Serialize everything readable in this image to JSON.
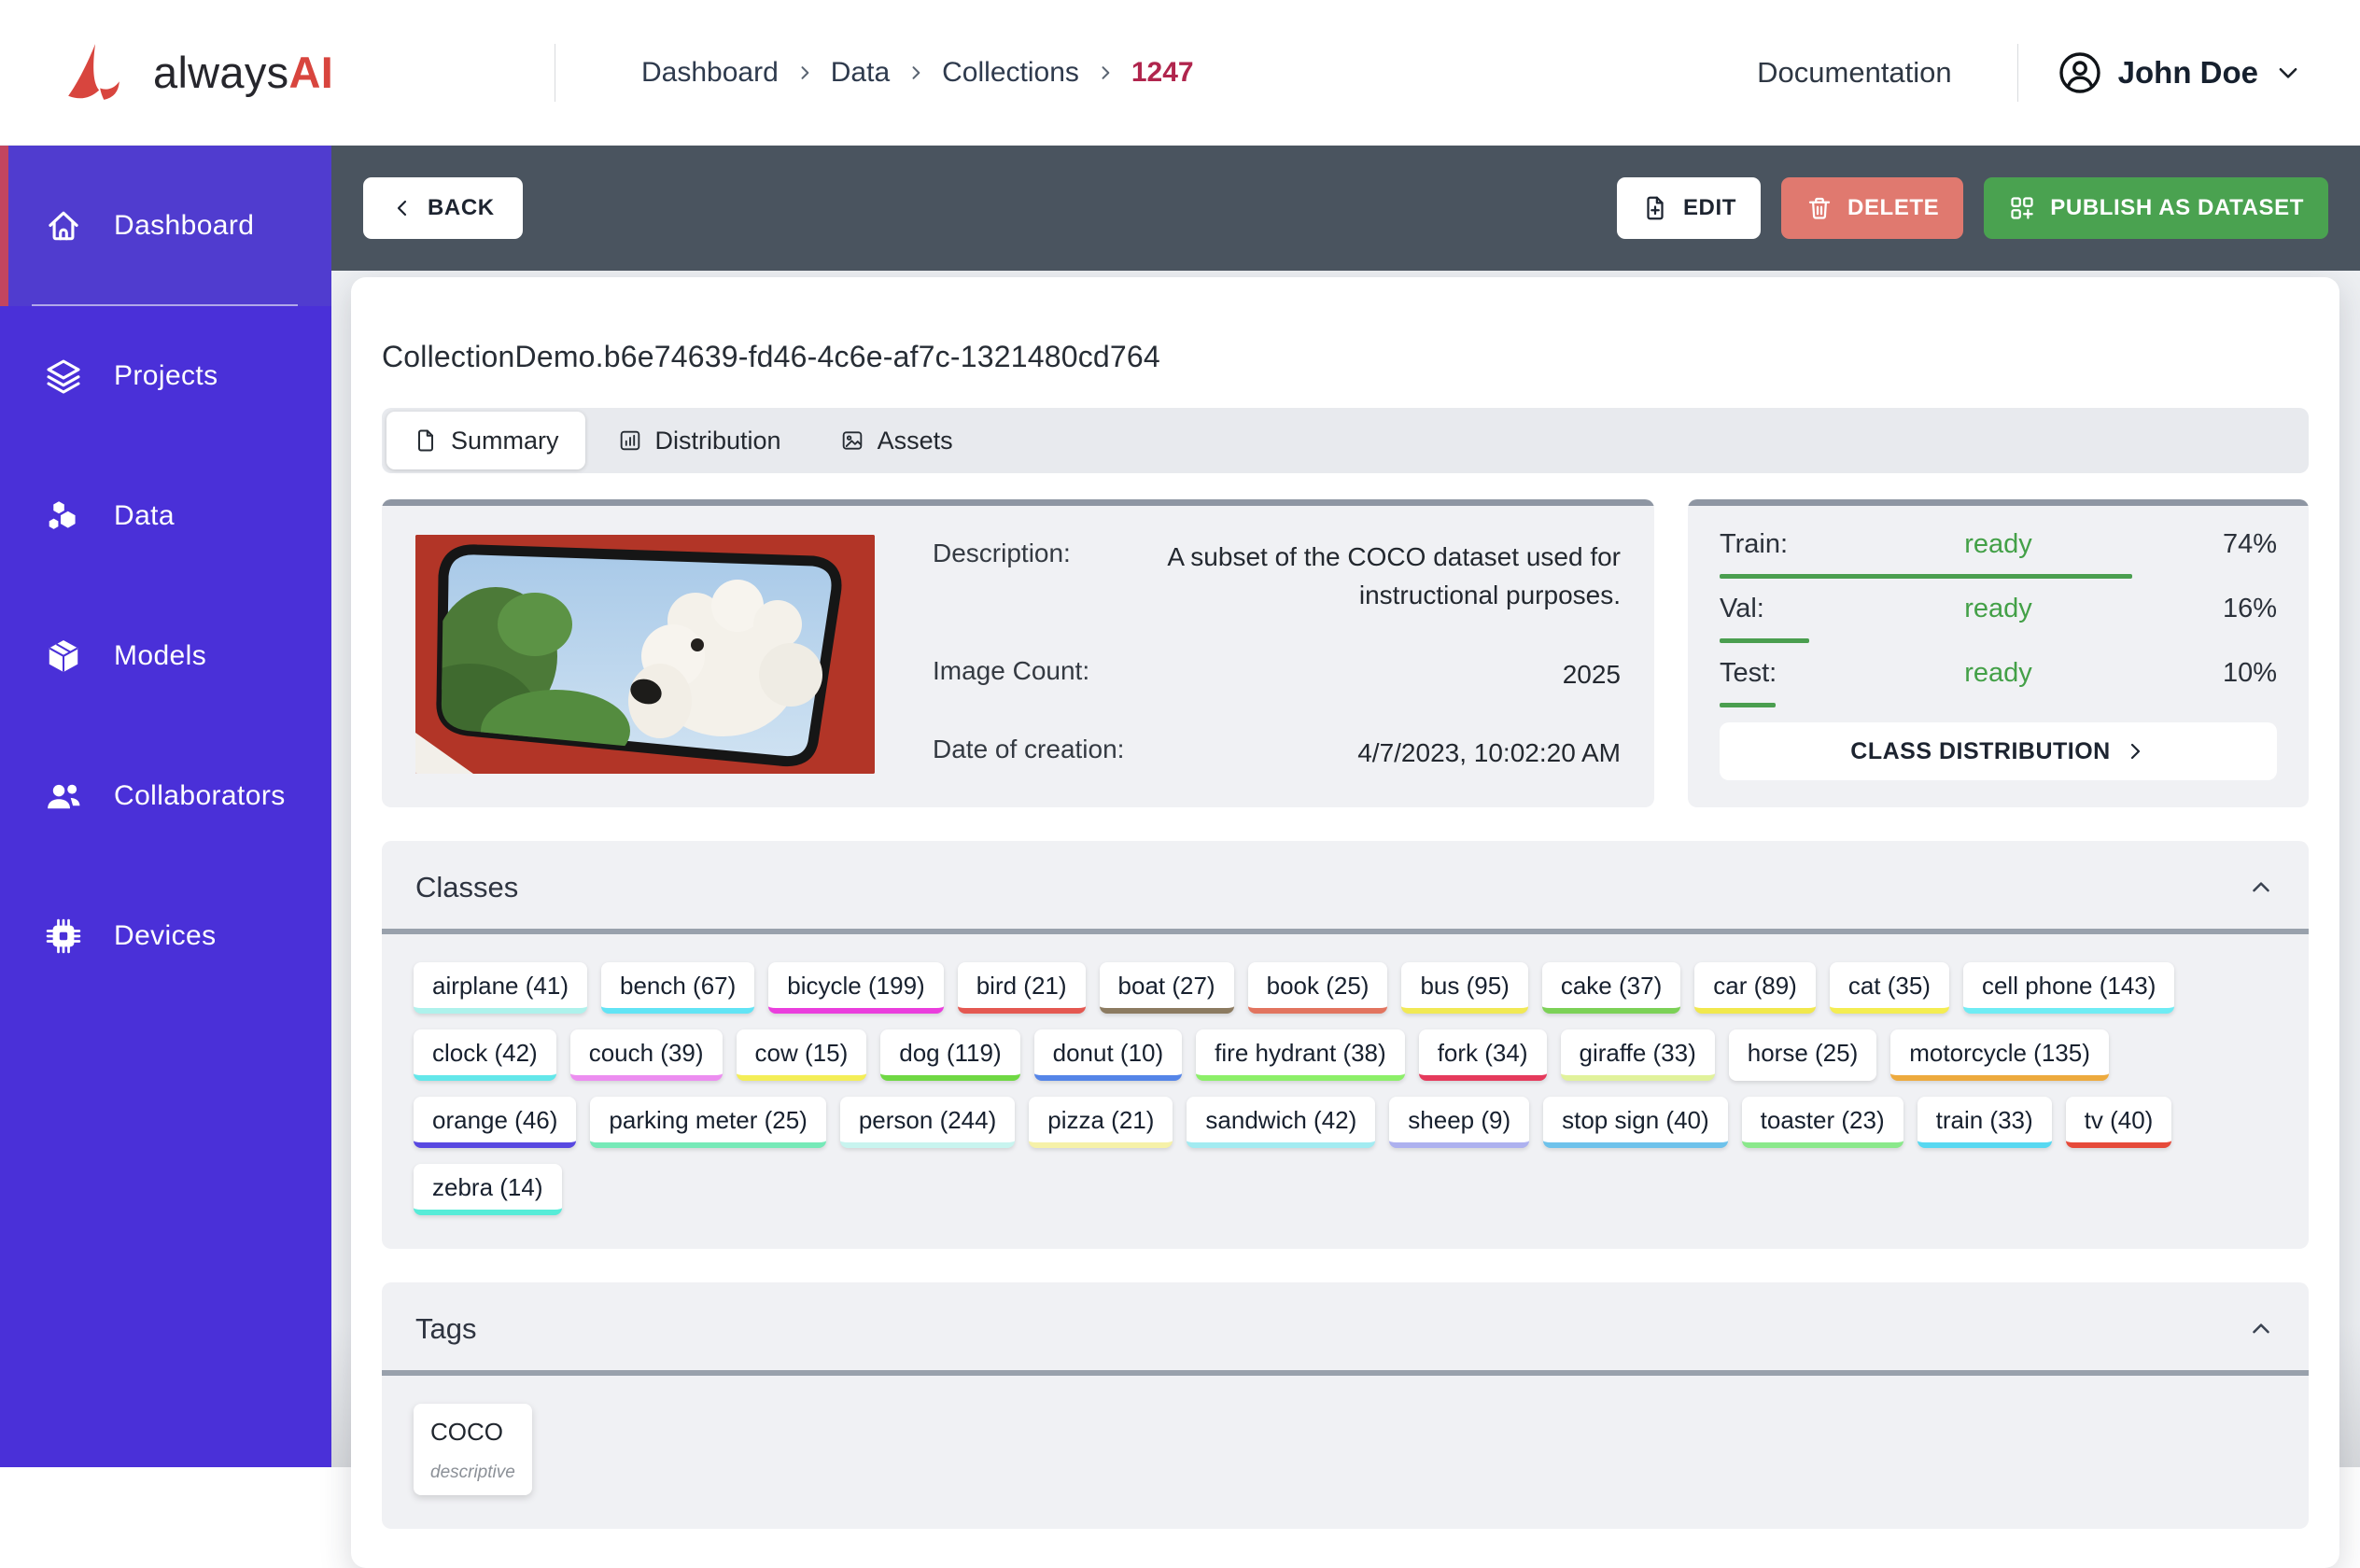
{
  "header": {
    "brand": {
      "name_primary": "always",
      "name_accent": "AI"
    },
    "breadcrumb": {
      "items": [
        "Dashboard",
        "Data",
        "Collections"
      ],
      "current": "1247"
    },
    "documentation_label": "Documentation",
    "user_name": "John Doe"
  },
  "sidebar": {
    "items": [
      {
        "label": "Dashboard",
        "icon": "home-icon",
        "active": true
      },
      {
        "label": "Projects",
        "icon": "layers-icon",
        "active": false
      },
      {
        "label": "Data",
        "icon": "data-boxes-icon",
        "active": false
      },
      {
        "label": "Models",
        "icon": "package-icon",
        "active": false
      },
      {
        "label": "Collaborators",
        "icon": "collaborators-icon",
        "active": false
      },
      {
        "label": "Devices",
        "icon": "chip-icon",
        "active": false
      }
    ]
  },
  "toolbar": {
    "back_label": "BACK",
    "edit_label": "EDIT",
    "delete_label": "DELETE",
    "publish_label": "PUBLISH AS DATASET"
  },
  "collection": {
    "title": "CollectionDemo.b6e74639-fd46-4c6e-af7c-1321480cd764",
    "tabs": [
      {
        "label": "Summary",
        "icon": "document-icon",
        "active": true
      },
      {
        "label": "Distribution",
        "icon": "bar-chart-icon",
        "active": false
      },
      {
        "label": "Assets",
        "icon": "image-icon",
        "active": false
      }
    ],
    "summary": {
      "description_label": "Description:",
      "description_value": "A subset of the COCO dataset used for instructional purposes.",
      "image_count_label": "Image Count:",
      "image_count_value": "2025",
      "date_label": "Date of creation:",
      "date_value": "4/7/2023, 10:02:20 AM"
    },
    "splits": {
      "rows": [
        {
          "label": "Train:",
          "status": "ready",
          "percent": "74%",
          "bar_width": "74%"
        },
        {
          "label": "Val:",
          "status": "ready",
          "percent": "16%",
          "bar_width": "16%"
        },
        {
          "label": "Test:",
          "status": "ready",
          "percent": "10%",
          "bar_width": "10%"
        }
      ],
      "class_distribution_label": "CLASS DISTRIBUTION"
    },
    "classes": {
      "title": "Classes",
      "items": [
        {
          "label": "airplane (41)",
          "color": "#aef2ec"
        },
        {
          "label": "bench (67)",
          "color": "#62e4f5"
        },
        {
          "label": "bicycle (199)",
          "color": "#ea3edd"
        },
        {
          "label": "bird (21)",
          "color": "#e45851"
        },
        {
          "label": "boat (27)",
          "color": "#8c7b61"
        },
        {
          "label": "book (25)",
          "color": "#e2745f"
        },
        {
          "label": "bus (95)",
          "color": "#f1e955"
        },
        {
          "label": "cake (37)",
          "color": "#7cd157"
        },
        {
          "label": "car (89)",
          "color": "#f1e84d"
        },
        {
          "label": "cat (35)",
          "color": "#f4ed52"
        },
        {
          "label": "cell phone (143)",
          "color": "#6fecf4"
        },
        {
          "label": "clock (42)",
          "color": "#63e7ea"
        },
        {
          "label": "couch (39)",
          "color": "#ec8df0"
        },
        {
          "label": "cow (15)",
          "color": "#f4ee57"
        },
        {
          "label": "dog (119)",
          "color": "#6fd843"
        },
        {
          "label": "donut (10)",
          "color": "#5585e8"
        },
        {
          "label": "fire hydrant (38)",
          "color": "#8cef69"
        },
        {
          "label": "fork (34)",
          "color": "#e53a5c"
        },
        {
          "label": "giraffe (33)",
          "color": "#e1f29b"
        },
        {
          "label": "horse (25)",
          "color": "#ffffff"
        },
        {
          "label": "motorcycle (135)",
          "color": "#edaa3e"
        },
        {
          "label": "orange (46)",
          "color": "#5848e1"
        },
        {
          "label": "parking meter (25)",
          "color": "#76e9b8"
        },
        {
          "label": "person (244)",
          "color": "#c8f4ef"
        },
        {
          "label": "pizza (21)",
          "color": "#f6f1a8"
        },
        {
          "label": "sandwich (42)",
          "color": "#a2ebf1"
        },
        {
          "label": "sheep (9)",
          "color": "#adb1ef"
        },
        {
          "label": "stop sign (40)",
          "color": "#6ec2eb"
        },
        {
          "label": "toaster (23)",
          "color": "#8ae88b"
        },
        {
          "label": "train (33)",
          "color": "#57d8f1"
        },
        {
          "label": "tv (40)",
          "color": "#e64a3a"
        },
        {
          "label": "zebra (14)",
          "color": "#57ecd8"
        }
      ]
    },
    "tags": {
      "title": "Tags",
      "items": [
        {
          "name": "COCO",
          "type": "descriptive"
        }
      ]
    }
  },
  "colors": {
    "sidebar_purple": "#4a30d8",
    "active_accent_red": "#c2455f",
    "toolbar_slate": "#4a545f",
    "delete_red": "#e0796f",
    "publish_green": "#4aa250",
    "ready_green": "#43a047",
    "breadcrumb_current_red": "#b0254d"
  }
}
